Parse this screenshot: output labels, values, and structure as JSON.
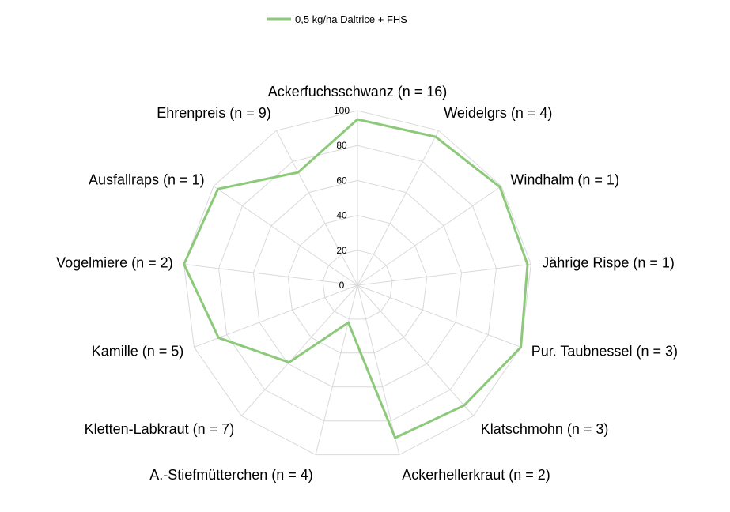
{
  "chart_data": {
    "type": "radar",
    "categories": [
      "Ackerfuchsschwanz (n = 16)",
      "Weidelgrs (n = 4)",
      "Windhalm (n = 1)",
      "Jährige Rispe (n = 1)",
      "Pur. Taubnessel (n = 3)",
      "Klatschmohn (n = 3)",
      "Ackerhellerkraut (n = 2)",
      "A.-Stiefmütterchen (n = 4)",
      "Kletten-Labkraut (n = 7)",
      "Kamille (n = 5)",
      "Vogelmiere (n = 2)",
      "Ausfallraps (n = 1)",
      "Ehrenpreis (n = 9)"
    ],
    "series": [
      {
        "name": "0,5 kg/ha Daltrice + FHS",
        "color": "#8cc97a",
        "values": [
          95,
          96,
          99,
          98,
          100,
          92,
          90,
          22,
          59,
          85,
          100,
          97,
          73
        ]
      }
    ],
    "rlim": [
      0,
      100
    ],
    "ticks": [
      "0",
      "20",
      "40",
      "60",
      "80",
      "100"
    ],
    "tick_values": [
      0,
      20,
      40,
      60,
      80,
      100
    ],
    "grid": true,
    "grid_color": "#d9d9d9",
    "legend": "top-center"
  }
}
